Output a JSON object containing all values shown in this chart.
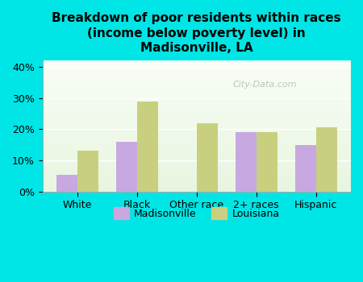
{
  "title": "Breakdown of poor residents within races\n(income below poverty level) in\nMadisonville, LA",
  "categories": [
    "White",
    "Black",
    "Other race",
    "2+ races",
    "Hispanic"
  ],
  "madisonville": [
    5.5,
    16.0,
    0.0,
    19.0,
    15.0
  ],
  "louisiana": [
    13.0,
    29.0,
    22.0,
    19.0,
    20.5
  ],
  "madisonville_color": "#c8a8e0",
  "louisiana_color": "#c8d080",
  "background_outer": "#00e5e5",
  "background_inner_top": "#e8f5e0",
  "background_inner_bottom": "#f8fdf5",
  "ylim": [
    0,
    42
  ],
  "yticks": [
    0,
    10,
    20,
    30,
    40
  ],
  "bar_width": 0.35,
  "legend_madisonville": "Madisonville",
  "legend_louisiana": "Louisiana"
}
